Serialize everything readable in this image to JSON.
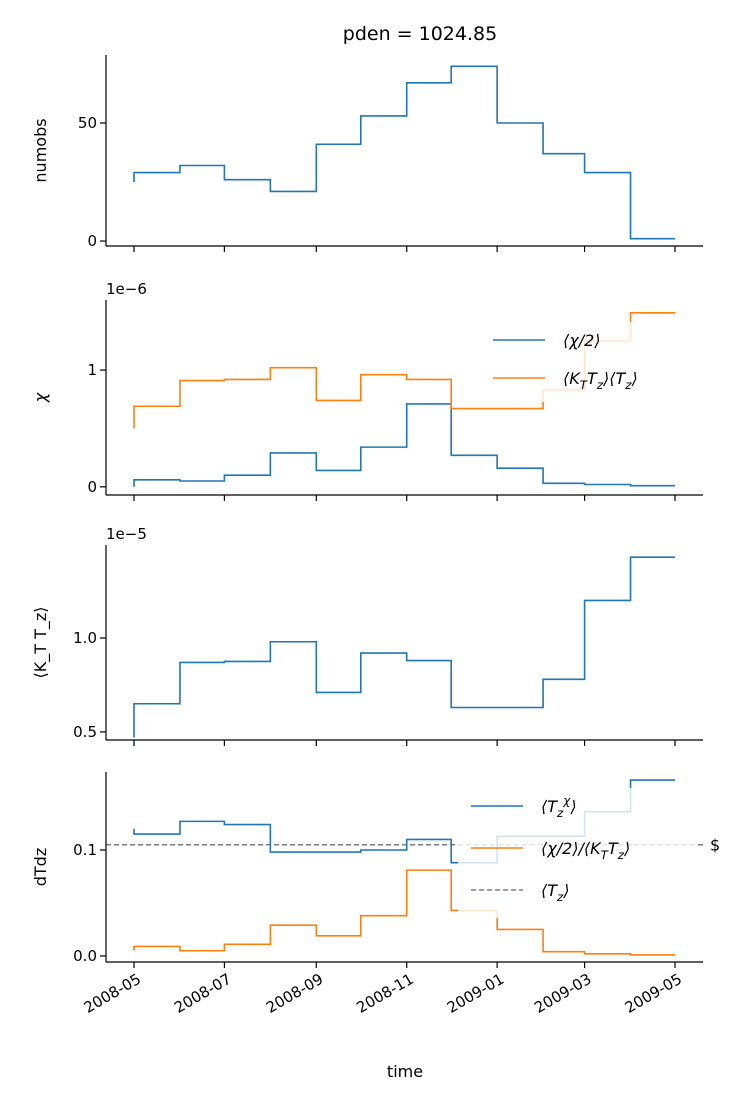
{
  "chart_data": [
    {
      "type": "line",
      "drawstyle": "steps-pre",
      "title": "pden = 1024.85",
      "xlabel": "",
      "ylabel": "numobs",
      "offset_text": "",
      "x": [
        "2008-05",
        "2008-06",
        "2008-07",
        "2008-08",
        "2008-09",
        "2008-10",
        "2008-11",
        "2008-12",
        "2009-01",
        "2009-02",
        "2009-03",
        "2009-04",
        "2009-05"
      ],
      "ylim": [
        -2.1,
        78.8
      ],
      "yticks": [
        0,
        50
      ],
      "ytick_labels": [
        "0",
        "50"
      ],
      "series": [
        {
          "name": "numobs",
          "color": "#1f77b4",
          "values": [
            25,
            29,
            32,
            26,
            21,
            41,
            53,
            67,
            74,
            50,
            37,
            29,
            1
          ]
        }
      ]
    },
    {
      "type": "line",
      "drawstyle": "steps-pre",
      "ylabel": "χ",
      "offset_text": "1e−6",
      "x": [
        "2008-05",
        "2008-06",
        "2008-07",
        "2008-08",
        "2008-09",
        "2008-10",
        "2008-11",
        "2008-12",
        "2009-01",
        "2009-02",
        "2009-03",
        "2009-04",
        "2009-05"
      ],
      "ylim": [
        -0.07,
        1.6
      ],
      "yticks": [
        0,
        1
      ],
      "ytick_labels": [
        "0",
        "1"
      ],
      "legend": "upper right",
      "series": [
        {
          "name": "⟨χ/2⟩",
          "color": "#1f77b4",
          "values": [
            0.0,
            0.06,
            0.05,
            0.1,
            0.29,
            0.14,
            0.34,
            0.71,
            0.27,
            0.16,
            0.03,
            0.02,
            0.01
          ]
        },
        {
          "name": "⟨K_T T_z⟩⟨T_z⟩",
          "color": "#ff7f0e",
          "values": [
            0.5,
            0.69,
            0.91,
            0.92,
            1.02,
            0.74,
            0.96,
            0.92,
            0.67,
            0.67,
            0.83,
            1.25,
            1.49
          ]
        }
      ]
    },
    {
      "type": "line",
      "drawstyle": "steps-pre",
      "ylabel": "⟨K_T T_z⟩",
      "offset_text": "1e−5",
      "x": [
        "2008-05",
        "2008-06",
        "2008-07",
        "2008-08",
        "2008-09",
        "2008-10",
        "2008-11",
        "2008-12",
        "2009-01",
        "2009-02",
        "2009-03",
        "2009-04",
        "2009-05"
      ],
      "ylim": [
        0.457,
        1.495
      ],
      "yticks": [
        0.5,
        1.0
      ],
      "ytick_labels": [
        "0.5",
        "1.0"
      ],
      "series": [
        {
          "name": "⟨K_T T_z⟩",
          "color": "#1f77b4",
          "values": [
            0.47,
            0.65,
            0.87,
            0.875,
            0.98,
            0.71,
            0.92,
            0.88,
            0.63,
            0.63,
            0.78,
            1.2,
            1.43
          ]
        }
      ]
    },
    {
      "type": "line",
      "drawstyle": "steps-pre",
      "ylabel": "dTdz",
      "xlabel": "time",
      "offset_text": "",
      "annotation": "$",
      "x": [
        "2008-05",
        "2008-06",
        "2008-07",
        "2008-08",
        "2008-09",
        "2008-10",
        "2008-11",
        "2008-12",
        "2009-01",
        "2009-02",
        "2009-03",
        "2009-04",
        "2009-05"
      ],
      "ylim": [
        -0.0057,
        0.1736
      ],
      "yticks": [
        0.0,
        0.1
      ],
      "ytick_labels": [
        "0.0",
        "0.1"
      ],
      "xticks": [
        "2008-05",
        "2008-07",
        "2008-09",
        "2008-11",
        "2009-01",
        "2009-03",
        "2009-05"
      ],
      "legend": "upper right",
      "hline": {
        "name": "⟨T_z⟩",
        "value": 0.105,
        "color": "#808080",
        "style": "dashed"
      },
      "series": [
        {
          "name": "⟨T_z^χ⟩",
          "color": "#1f77b4",
          "values": [
            0.12,
            0.115,
            0.127,
            0.124,
            0.098,
            0.098,
            0.1,
            0.11,
            0.088,
            0.113,
            0.113,
            0.136,
            0.166
          ]
        },
        {
          "name": "⟨χ/2⟩/⟨K_T T_z⟩",
          "color": "#ff7f0e",
          "values": [
            0.005,
            0.009,
            0.005,
            0.011,
            0.029,
            0.019,
            0.038,
            0.081,
            0.043,
            0.025,
            0.004,
            0.002,
            0.001
          ]
        }
      ]
    }
  ]
}
